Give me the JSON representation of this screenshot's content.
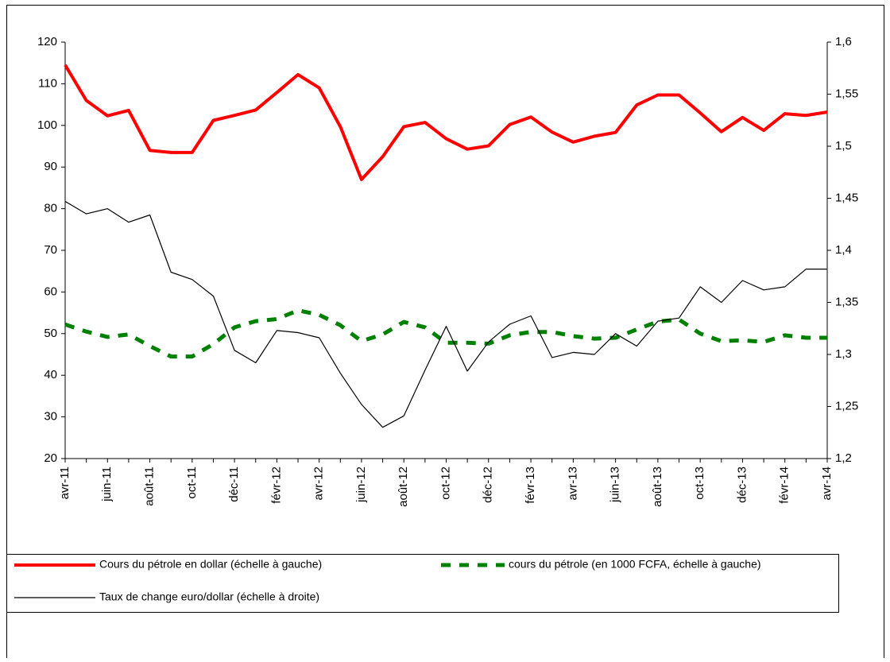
{
  "chart_data": {
    "type": "line",
    "categories": [
      "avr-11",
      null,
      "juin-11",
      null,
      "août-11",
      null,
      "oct-11",
      null,
      "déc-11",
      null,
      "févr-12",
      null,
      "avr-12",
      null,
      "juin-12",
      null,
      "août-12",
      null,
      "oct-12",
      null,
      "déc-12",
      null,
      "févr-13",
      null,
      "avr-13",
      null,
      "juin-13",
      null,
      "août-13",
      null,
      "oct-13",
      null,
      "déc-13",
      null,
      "févr-14",
      null,
      "avr-14"
    ],
    "series": [
      {
        "name": "Cours du pétrole en dollar (échelle à gauche)",
        "color": "#ff0000",
        "values": [
          114.5,
          106,
          102.3,
          103.6,
          94,
          93.5,
          93.5,
          101.2,
          102.4,
          103.7,
          107.9,
          112.2,
          109,
          99.7,
          87,
          92.5,
          99.7,
          100.7,
          96.8,
          94.3,
          95.1,
          100.2,
          102,
          98.4,
          96,
          97.4,
          98.3,
          104.9,
          107.3,
          107.3,
          103,
          98.5,
          101.9,
          98.8,
          102.8,
          102.4,
          103.2
        ]
      },
      {
        "name": "cours du pétrole (en 1000 FCFA, échelle à gauche)",
        "color": "#008000",
        "dashed": true,
        "values": [
          52.2,
          50.5,
          49.2,
          49.8,
          47,
          44.5,
          44.5,
          47.5,
          51.5,
          53,
          53.5,
          55.6,
          54.5,
          52,
          48.2,
          49.8,
          52.8,
          51.5,
          47.8,
          47.8,
          47.6,
          49.6,
          50.4,
          50.4,
          49.4,
          48.8,
          49,
          51,
          52.9,
          53.4,
          50,
          48.2,
          48.4,
          48,
          49.6,
          49,
          49
        ]
      },
      {
        "name": "Taux de change euro/dollar (échelle à droite)",
        "color": "#000000",
        "axis": "y2",
        "values": [
          1.447,
          1.435,
          1.44,
          1.427,
          1.434,
          1.379,
          1.372,
          1.356,
          1.304,
          1.292,
          1.323,
          1.321,
          1.316,
          1.282,
          1.252,
          1.23,
          1.241,
          1.285,
          1.327,
          1.284,
          1.312,
          1.329,
          1.337,
          1.297,
          1.302,
          1.3,
          1.32,
          1.308,
          1.332,
          1.335,
          1.365,
          1.35,
          1.371,
          1.362,
          1.365,
          1.382,
          1.382
        ]
      }
    ],
    "ylim": [
      20,
      120
    ],
    "yticks": [
      20,
      30,
      40,
      50,
      60,
      70,
      80,
      90,
      100,
      110,
      120
    ],
    "y2lim": [
      1.2,
      1.6
    ],
    "y2ticks": [
      {
        "value": 1.2,
        "label": "1,2"
      },
      {
        "value": 1.25,
        "label": "1,25"
      },
      {
        "value": 1.3,
        "label": "1,3"
      },
      {
        "value": 1.35,
        "label": "1,35"
      },
      {
        "value": 1.4,
        "label": "1,4"
      },
      {
        "value": 1.45,
        "label": "1,45"
      },
      {
        "value": 1.5,
        "label": "1,5"
      },
      {
        "value": 1.55,
        "label": "1,55"
      },
      {
        "value": 1.6,
        "label": "1,6"
      }
    ],
    "grid": false,
    "legend": "bottom"
  }
}
